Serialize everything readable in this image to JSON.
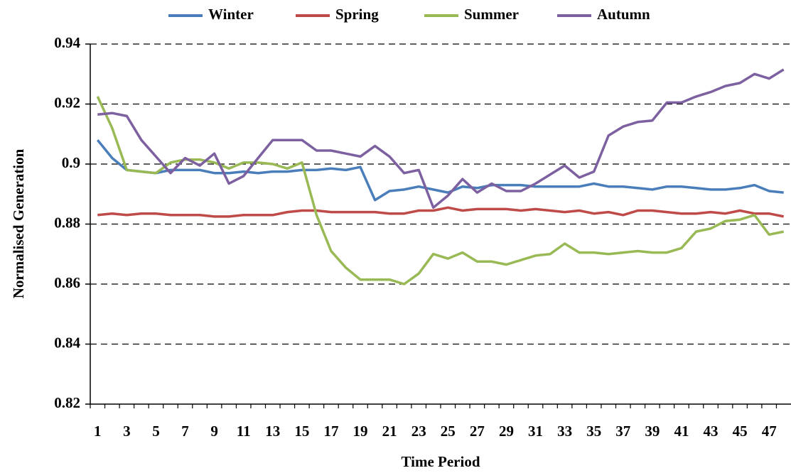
{
  "chart_data": {
    "type": "line",
    "xlabel": "Time Period",
    "ylabel": "Normalised Generation",
    "categories": [
      1,
      null,
      3,
      null,
      5,
      null,
      7,
      null,
      9,
      null,
      11,
      null,
      13,
      null,
      15,
      null,
      17,
      null,
      19,
      null,
      21,
      null,
      23,
      null,
      25,
      null,
      27,
      null,
      29,
      null,
      31,
      null,
      33,
      null,
      35,
      null,
      37,
      null,
      39,
      null,
      41,
      null,
      43,
      null,
      45,
      null,
      47,
      null
    ],
    "ylim": [
      0.82,
      0.94
    ],
    "yticks": [
      0.82,
      0.84,
      0.86,
      0.88,
      0.9,
      0.92,
      0.94
    ],
    "grid": true,
    "legend": "top",
    "series": [
      {
        "name": "Winter",
        "color": "#4a7ebb",
        "values": [
          0.908,
          0.902,
          0.898,
          0.8975,
          0.897,
          0.898,
          0.898,
          0.898,
          0.897,
          0.897,
          0.8975,
          0.897,
          0.8975,
          0.8975,
          0.898,
          0.898,
          0.8985,
          0.898,
          0.899,
          0.888,
          0.891,
          0.8915,
          0.8925,
          0.8915,
          0.8905,
          0.8925,
          0.892,
          0.893,
          0.893,
          0.893,
          0.8925,
          0.8925,
          0.8925,
          0.8925,
          0.8935,
          0.8925,
          0.8925,
          0.892,
          0.8915,
          0.8925,
          0.8925,
          0.892,
          0.8915,
          0.8915,
          0.892,
          0.893,
          0.891,
          0.8905
        ]
      },
      {
        "name": "Spring",
        "color": "#be4b48",
        "values": [
          0.883,
          0.8835,
          0.883,
          0.8835,
          0.8835,
          0.883,
          0.883,
          0.883,
          0.8825,
          0.8825,
          0.883,
          0.883,
          0.883,
          0.884,
          0.8845,
          0.8845,
          0.884,
          0.884,
          0.884,
          0.884,
          0.8835,
          0.8835,
          0.8845,
          0.8845,
          0.8855,
          0.8845,
          0.885,
          0.885,
          0.885,
          0.8845,
          0.885,
          0.8845,
          0.884,
          0.8845,
          0.8835,
          0.884,
          0.883,
          0.8845,
          0.8845,
          0.884,
          0.8835,
          0.8835,
          0.884,
          0.8835,
          0.8845,
          0.8835,
          0.8835,
          0.8825
        ]
      },
      {
        "name": "Summer",
        "color": "#98b954",
        "values": [
          0.9225,
          0.912,
          0.898,
          0.8975,
          0.897,
          0.9005,
          0.9015,
          0.9015,
          0.9005,
          0.8985,
          0.9005,
          0.9005,
          0.9,
          0.8985,
          0.9005,
          0.883,
          0.871,
          0.8655,
          0.8615,
          0.8615,
          0.8615,
          0.86,
          0.8635,
          0.87,
          0.8685,
          0.8705,
          0.8675,
          0.8675,
          0.8665,
          0.868,
          0.8695,
          0.87,
          0.8735,
          0.8705,
          0.8705,
          0.87,
          0.8705,
          0.871,
          0.8705,
          0.8705,
          0.872,
          0.8775,
          0.8785,
          0.881,
          0.8815,
          0.883,
          0.8765,
          0.8775
        ]
      },
      {
        "name": "Autumn",
        "color": "#7d60a0",
        "values": [
          0.9165,
          0.917,
          0.916,
          0.908,
          0.9025,
          0.897,
          0.902,
          0.8995,
          0.9035,
          0.8935,
          0.896,
          0.902,
          0.908,
          0.908,
          0.908,
          0.9045,
          0.9045,
          0.9035,
          0.9025,
          0.906,
          0.9025,
          0.897,
          0.898,
          0.8855,
          0.8895,
          0.895,
          0.8905,
          0.8935,
          0.891,
          0.891,
          0.8935,
          0.8965,
          0.8995,
          0.8955,
          0.8975,
          0.9095,
          0.9125,
          0.914,
          0.9145,
          0.9205,
          0.9205,
          0.9225,
          0.924,
          0.926,
          0.927,
          0.93,
          0.9285,
          0.9315
        ]
      }
    ]
  }
}
